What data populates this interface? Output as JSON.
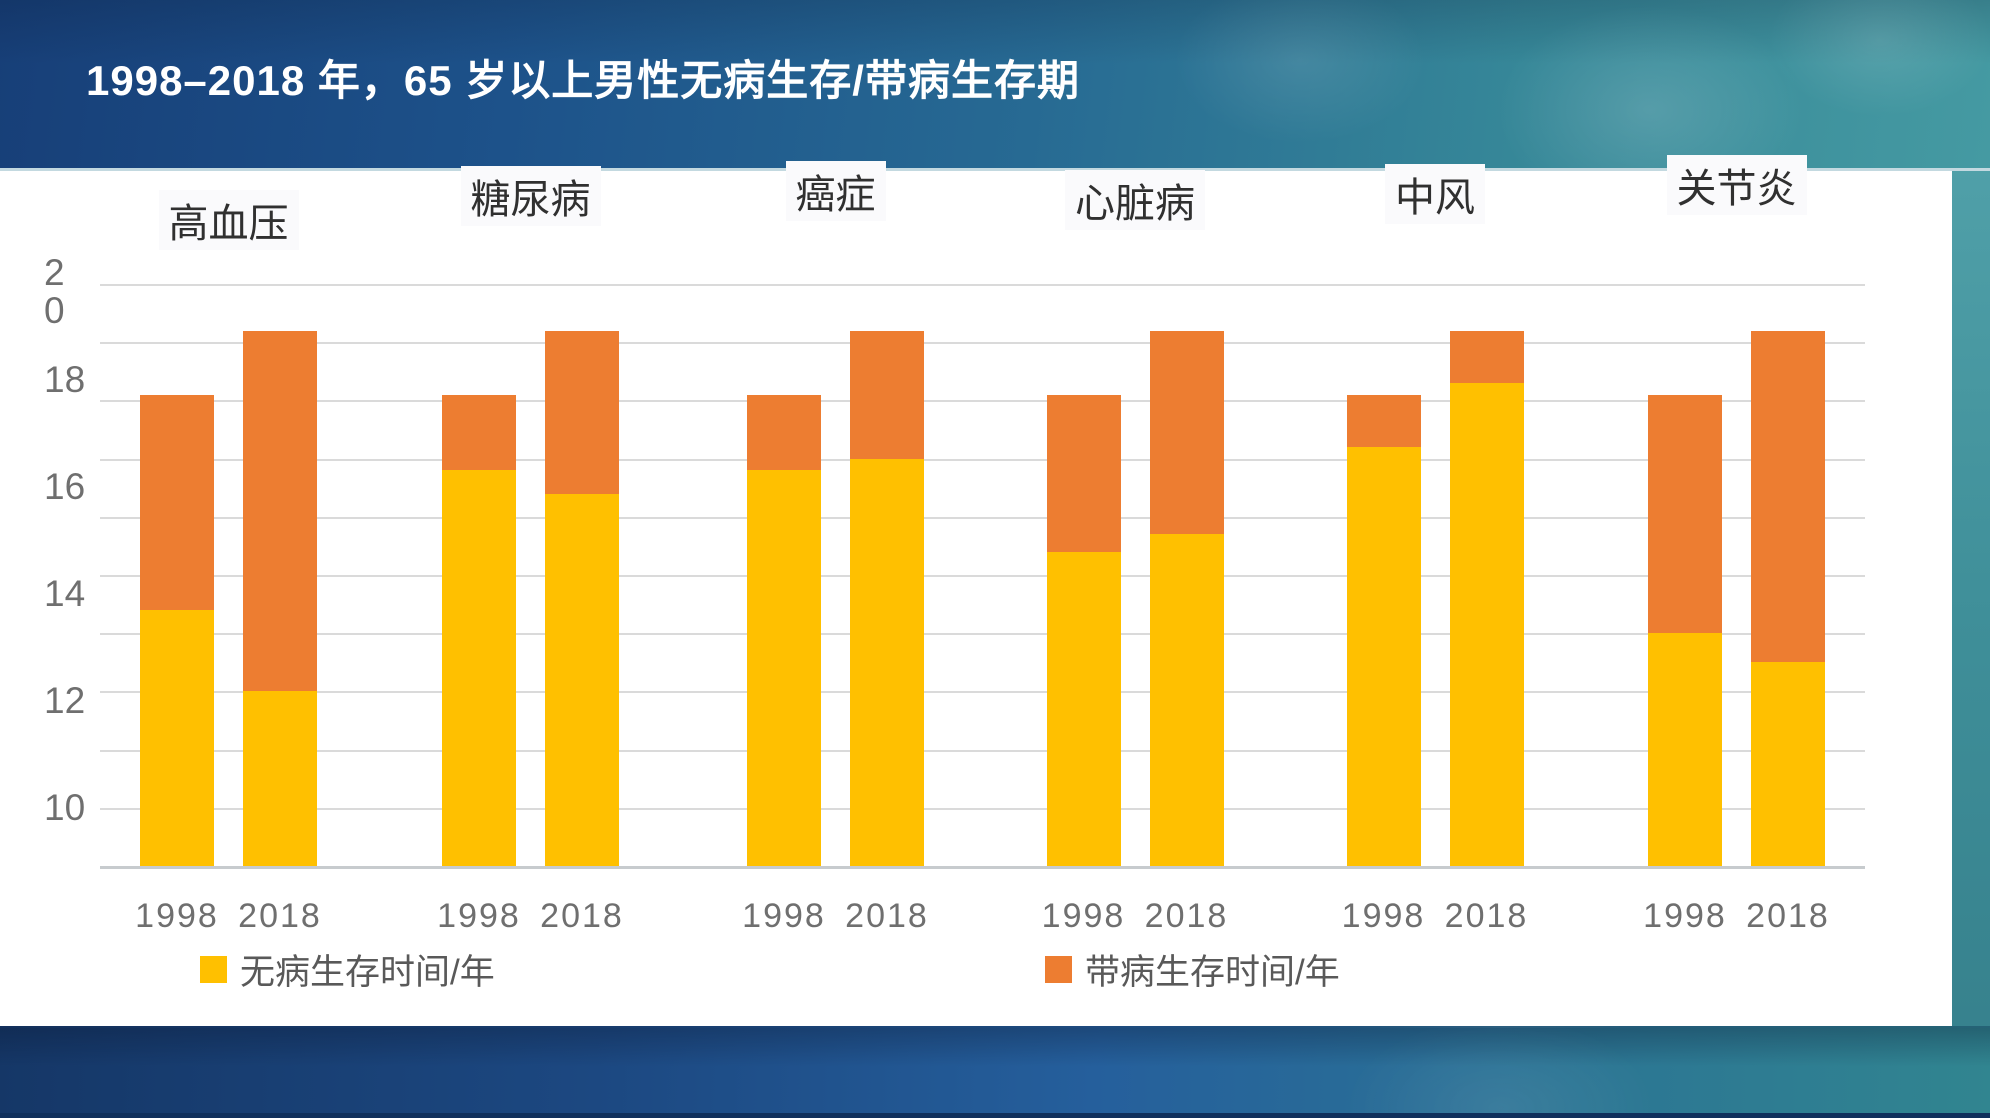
{
  "header": {
    "title": "1998–2018 年，65 岁以上男性无病生存/带病生存期"
  },
  "y_axis": {
    "tick_labels": [
      "2\n0",
      "18",
      "16",
      "14",
      "12",
      "10"
    ]
  },
  "legend": [
    {
      "label": "无病生存时间/年",
      "color": "#FFC000"
    },
    {
      "label": "带病生存时间/年",
      "color": "#ED7D31"
    }
  ],
  "colors": {
    "disease_free": "#FFC000",
    "with_disease": "#ED7D31",
    "gridline": "#DADADA",
    "axis_text": "#6F6F6F",
    "title_text": "#FFFFFF",
    "header_gradient_left": "#173F78",
    "header_gradient_right": "#459AA2",
    "bottom_band_left": "#153767",
    "bottom_band_right": "#318590"
  },
  "chart_data": {
    "type": "bar",
    "stacked": true,
    "title": "1998–2018 年，65 岁以上男性无病生存/带病生存期",
    "ylabel": "",
    "xlabel": "",
    "ylim": [
      10,
      20
    ],
    "yticks": [
      20,
      18,
      16,
      14,
      12,
      10
    ],
    "gridlines": "horizontal, every 1 unit",
    "legend_position": "bottom",
    "years": [
      "1998",
      "2018"
    ],
    "categories": [
      "高血压",
      "糖尿病",
      "癌症",
      "心脏病",
      "中风",
      "关节炎"
    ],
    "series": [
      {
        "name": "无病生存时间/年",
        "color": "#FFC000"
      },
      {
        "name": "带病生存时间/年",
        "color": "#ED7D31"
      }
    ],
    "groups": [
      {
        "label": "高血压",
        "key": "hypertension",
        "bars": [
          {
            "year": "1998",
            "disease_free": 14.4,
            "with_disease": 3.7
          },
          {
            "year": "2018",
            "disease_free": 13.0,
            "with_disease": 6.2
          }
        ]
      },
      {
        "label": "糖尿病",
        "key": "diabetes",
        "bars": [
          {
            "year": "1998",
            "disease_free": 16.8,
            "with_disease": 1.3
          },
          {
            "year": "2018",
            "disease_free": 16.4,
            "with_disease": 2.8
          }
        ]
      },
      {
        "label": "癌症",
        "key": "cancer",
        "bars": [
          {
            "year": "1998",
            "disease_free": 16.8,
            "with_disease": 1.3
          },
          {
            "year": "2018",
            "disease_free": 17.0,
            "with_disease": 2.2
          }
        ]
      },
      {
        "label": "心脏病",
        "key": "heart-disease",
        "bars": [
          {
            "year": "1998",
            "disease_free": 15.4,
            "with_disease": 2.7
          },
          {
            "year": "2018",
            "disease_free": 15.7,
            "with_disease": 3.5
          }
        ]
      },
      {
        "label": "中风",
        "key": "stroke",
        "bars": [
          {
            "year": "1998",
            "disease_free": 17.2,
            "with_disease": 0.9
          },
          {
            "year": "2018",
            "disease_free": 18.3,
            "with_disease": 0.9
          }
        ]
      },
      {
        "label": "关节炎",
        "key": "arthritis",
        "bars": [
          {
            "year": "1998",
            "disease_free": 14.0,
            "with_disease": 4.1
          },
          {
            "year": "2018",
            "disease_free": 13.5,
            "with_disease": 5.7
          }
        ]
      }
    ]
  }
}
